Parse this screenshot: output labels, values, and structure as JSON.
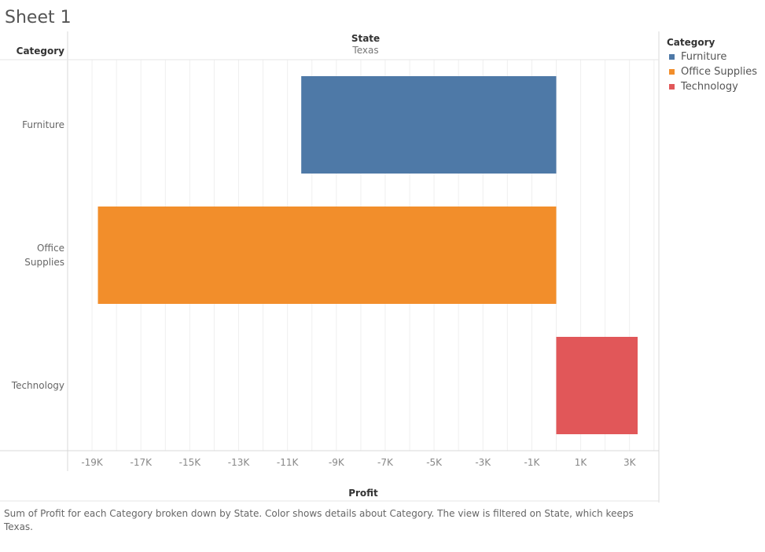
{
  "sheet": {
    "title": "Sheet 1"
  },
  "headers": {
    "row_header": "Category",
    "column_header": "State",
    "column_value": "Texas"
  },
  "legend": {
    "title": "Category",
    "items": [
      {
        "label": "Furniture",
        "color": "#4e79a7"
      },
      {
        "label": "Office Supplies",
        "color": "#f28e2b"
      },
      {
        "label": "Technology",
        "color": "#e15759"
      }
    ]
  },
  "caption": "Sum of Profit for each Category broken down by State.  Color shows details about Category. The view is filtered on State, which keeps Texas.",
  "chart_data": {
    "type": "bar",
    "orientation": "horizontal",
    "categories": [
      "Furniture",
      "Office Supplies",
      "Technology"
    ],
    "category_labels": [
      [
        "Furniture"
      ],
      [
        "Office",
        "Supplies"
      ],
      [
        "Technology"
      ]
    ],
    "values": [
      -10437,
      -18760,
      3331
    ],
    "colors": [
      "#4e79a7",
      "#f28e2b",
      "#e15759"
    ],
    "xlabel": "Profit",
    "ylabel": "Category",
    "xlim": [
      -20000,
      4200
    ],
    "x_ticks": [
      -19000,
      -17000,
      -15000,
      -13000,
      -11000,
      -9000,
      -7000,
      -5000,
      -3000,
      -1000,
      1000,
      3000
    ],
    "x_tick_labels": [
      "-19K",
      "-17K",
      "-15K",
      "-13K",
      "-11K",
      "-9K",
      "-7K",
      "-5K",
      "-3K",
      "-1K",
      "1K",
      "3K"
    ],
    "grid": true
  }
}
